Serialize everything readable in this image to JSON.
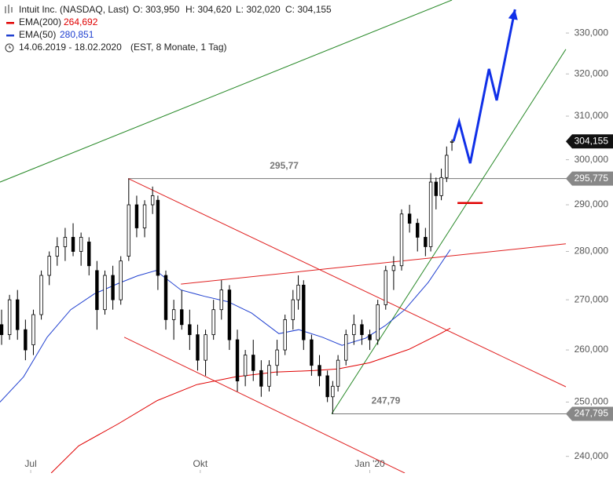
{
  "chart_data": {
    "type": "candlestick",
    "title": "Intuit Inc. (NASDAQ, Last)",
    "ohlc_info": [
      {
        "value": 303.95,
        "label": "O: 303,950"
      },
      {
        "value": 304.62,
        "label": "H: 304,620"
      },
      {
        "value": 302.02,
        "label": "L: 302,020"
      },
      {
        "value": 304.155,
        "label": "C: 304,155"
      }
    ],
    "period": "14.06.2019 - 18.02.2020",
    "period_note": "(EST, 8 Monate, 1 Tag)",
    "log_scale": true,
    "ylim": [
      237.0,
      338.3
    ],
    "xlim": [
      -0.6,
      213
    ],
    "yticks": [
      {
        "value": 240,
        "label": "240,000"
      },
      {
        "value": 250,
        "label": "250,000"
      },
      {
        "value": 260,
        "label": "260,000"
      },
      {
        "value": 270,
        "label": "270,000"
      },
      {
        "value": 280,
        "label": "280,000"
      },
      {
        "value": 290,
        "label": "290,000"
      },
      {
        "value": 300,
        "label": "300,000"
      },
      {
        "value": 310,
        "label": "310,000"
      },
      {
        "value": 320,
        "label": "320,000"
      },
      {
        "value": 330,
        "label": "330,000"
      }
    ],
    "xticks": [
      {
        "value": 11,
        "label": "Jul"
      },
      {
        "value": 75,
        "label": "Okt"
      },
      {
        "value": 139,
        "label": "Jan '20"
      }
    ],
    "candles": {
      "up_color": "#ffffff",
      "down_color": "#000000",
      "x": [
        0,
        3,
        6,
        9,
        12,
        15,
        18,
        21,
        24,
        27,
        30,
        33,
        36,
        39,
        42,
        45,
        48,
        51,
        54,
        57,
        59,
        62,
        65,
        68,
        71,
        74,
        77,
        80,
        83,
        86,
        89,
        92,
        95,
        98,
        101,
        104,
        107,
        110,
        112,
        114,
        117,
        120,
        123,
        125,
        127,
        130,
        133,
        136,
        139,
        142,
        145,
        148,
        151,
        154,
        157,
        160,
        162,
        164,
        166,
        168,
        170
      ],
      "open": [
        265,
        263,
        270,
        264,
        261,
        267,
        275,
        279,
        281,
        283,
        280,
        282,
        276,
        268,
        275,
        270,
        279,
        290,
        285,
        290,
        291,
        275,
        266,
        268,
        265,
        263,
        258,
        263,
        268,
        272,
        262,
        255,
        259,
        256,
        253,
        257,
        260,
        266,
        270,
        273,
        262,
        257,
        255,
        251,
        253,
        258,
        263,
        265,
        263,
        262,
        269,
        276,
        277,
        288,
        286,
        283,
        281,
        295,
        292,
        296,
        303.95
      ],
      "high": [
        268,
        271,
        272,
        266,
        268,
        276,
        280,
        283,
        285,
        286,
        284,
        283,
        278,
        276,
        277,
        279,
        295.77,
        292,
        291,
        294,
        292,
        276,
        270,
        272,
        268,
        265,
        264,
        270,
        274,
        273,
        264,
        260,
        262,
        258,
        258,
        262,
        267,
        272,
        275,
        274,
        263,
        259,
        256,
        254,
        259,
        264,
        267,
        266,
        264,
        270,
        277,
        279,
        289,
        290,
        287,
        285,
        297,
        296,
        298,
        303,
        304.62
      ],
      "low": [
        261,
        262,
        262,
        258,
        259,
        266,
        273,
        277,
        278,
        279,
        277,
        275,
        264,
        267,
        268,
        269,
        278,
        283,
        283,
        288,
        272,
        264,
        262,
        264,
        260,
        256,
        255,
        262,
        266,
        260,
        252,
        253,
        254,
        251,
        252,
        255,
        259,
        264,
        268,
        260,
        255,
        253,
        250,
        247.79,
        252,
        257,
        261,
        261,
        260,
        261,
        268,
        272,
        276,
        284,
        280,
        279,
        280,
        289,
        291,
        295,
        302.02
      ],
      "close": [
        263,
        270,
        264,
        260,
        267,
        275,
        279,
        281,
        283,
        280,
        283,
        277,
        268,
        275,
        270,
        278,
        290,
        285,
        290,
        292,
        275,
        266,
        268,
        265,
        263,
        258,
        263,
        268,
        272,
        262,
        254,
        259,
        256,
        253,
        257,
        260,
        266,
        270,
        273,
        262,
        257,
        255,
        251,
        253,
        258,
        263,
        265,
        263,
        262,
        269,
        276,
        277,
        288,
        286,
        283,
        281,
        295,
        292,
        296,
        301,
        304.155
      ]
    },
    "series": [
      {
        "name": "EMA(200)",
        "last": {
          "value": 264.692,
          "label": "264,692"
        },
        "color": "#e00000",
        "x": [
          18.7,
          29.1,
          43.9,
          58.8,
          73.6,
          88.4,
          103.3,
          118.1,
          127.0,
          138.9,
          153.7,
          165.6,
          169.4
        ],
        "values": [
          237.0,
          241.9,
          245.9,
          250.3,
          253.3,
          254.8,
          255.7,
          256.0,
          256.3,
          257.5,
          260.1,
          263.2,
          264.3
        ]
      },
      {
        "name": "EMA(50)",
        "last": {
          "value": 280.851,
          "label": "280,851"
        },
        "color": "#2040d0",
        "x": [
          -0.6,
          8.3,
          17.2,
          26.1,
          35.0,
          43.9,
          51.3,
          58.2,
          67.7,
          76.6,
          85.5,
          94.4,
          104.7,
          112.2,
          121.1,
          128.5,
          137.4,
          144.8,
          152.2,
          161.1,
          169.4
        ],
        "values": [
          250.0,
          254.8,
          262.5,
          268.0,
          271.2,
          273.3,
          274.9,
          276.0,
          272.0,
          270.7,
          269.6,
          267.3,
          263.2,
          264.0,
          262.5,
          260.9,
          262.3,
          264.8,
          268.0,
          273.6,
          280.4
        ]
      }
    ],
    "trend_lines": [
      {
        "color": "#2a8a2a",
        "x": [
          -0.6,
          170
        ],
        "values": [
          295.0,
          338.3
        ]
      },
      {
        "color": "#2a8a2a",
        "x": [
          124.6,
          213
        ],
        "values": [
          247.8,
          326.0
        ]
      },
      {
        "color": "#e02020",
        "x": [
          47.8,
          213
        ],
        "values": [
          295.77,
          252.9
        ]
      },
      {
        "color": "#e02020",
        "x": [
          46.3,
          152.2
        ],
        "values": [
          262.5,
          237.0
        ]
      },
      {
        "color": "#e02020",
        "x": [
          67.7,
          213
        ],
        "values": [
          273.2,
          281.6
        ]
      }
    ],
    "levels": [
      {
        "value": 295.77,
        "label": "295,77",
        "from": 47.8,
        "tag": {
          "value": 295.775,
          "label": "295,775"
        }
      },
      {
        "value": 247.79,
        "label": "247,79",
        "from": 124.6,
        "tag": {
          "value": 247.795,
          "label": "247,795"
        }
      }
    ],
    "last_tag": {
      "value": 304.155,
      "label": "304,155"
    },
    "marker": {
      "color": "#e00000",
      "x": [
        172.1,
        181.6
      ],
      "value": 290.4
    },
    "projection": {
      "color": "#1030e8",
      "x": [
        170.6,
        172.7,
        176.9,
        184.0,
        186.9,
        193.8
      ],
      "values": [
        304.2,
        308.7,
        299.2,
        321.2,
        313.7,
        335.9
      ]
    }
  }
}
